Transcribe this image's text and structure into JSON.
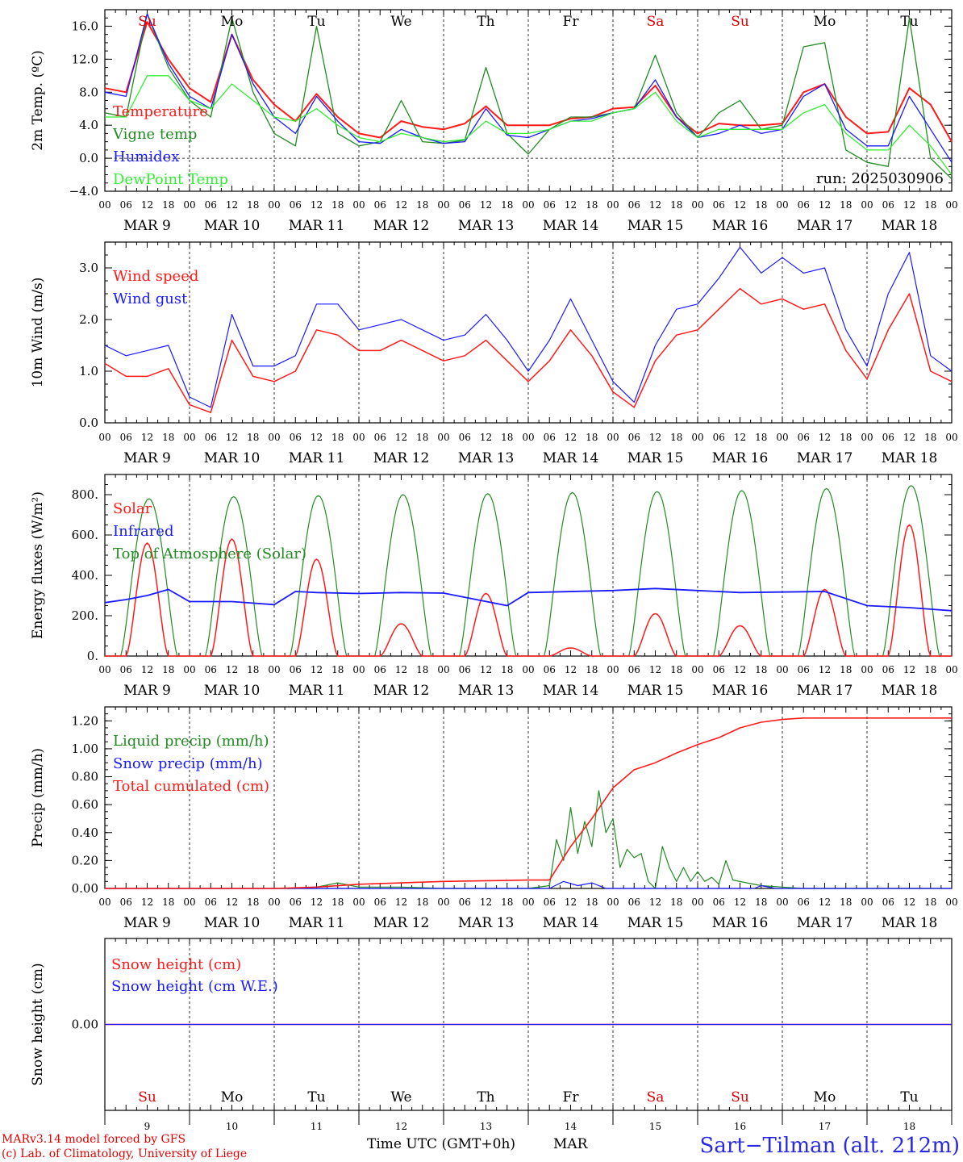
{
  "colors": {
    "red": "#ff1a1a",
    "dark_green": "#228b22",
    "blue": "#1a1aff",
    "light_green": "#33ee33",
    "black": "#000000"
  },
  "x_axis": {
    "hour_ticks": [
      "00",
      "06",
      "12",
      "18"
    ],
    "final_tick": "00",
    "dates": [
      "MAR  9",
      "MAR 10",
      "MAR 11",
      "MAR 12",
      "MAR 13",
      "MAR 14",
      "MAR 15",
      "MAR 16",
      "MAR 17",
      "MAR 18"
    ],
    "weekdays": [
      {
        "label": "Su",
        "color": "#e00000"
      },
      {
        "label": "Mo",
        "color": "#000000"
      },
      {
        "label": "Tu",
        "color": "#000000"
      },
      {
        "label": "We",
        "color": "#000000"
      },
      {
        "label": "Th",
        "color": "#000000"
      },
      {
        "label": "Fr",
        "color": "#000000"
      },
      {
        "label": "Sa",
        "color": "#e00000"
      },
      {
        "label": "Su",
        "color": "#e00000"
      },
      {
        "label": "Mo",
        "color": "#000000"
      },
      {
        "label": "Tu",
        "color": "#000000"
      }
    ],
    "day_numbers": [
      "9",
      "10",
      "11",
      "12",
      "13",
      "14",
      "15",
      "16",
      "17",
      "18"
    ]
  },
  "chart_data": [
    {
      "type": "line",
      "ylabel": "2m Temp. (ºC)",
      "ylim": [
        -4,
        18
      ],
      "yticks": [
        -4,
        0,
        4,
        8,
        12,
        16
      ],
      "ytick_labels": [
        "−4.0",
        "0.0",
        "4.0",
        "8.0",
        "12.0",
        "16.0"
      ],
      "zero_line": true,
      "annotation": "run: 2025030906",
      "x_hours": [
        0,
        6,
        12,
        18,
        24,
        30,
        36,
        42,
        48,
        54,
        60,
        66,
        72,
        78,
        84,
        90,
        96,
        102,
        108,
        114,
        120,
        126,
        132,
        138,
        144,
        150,
        156,
        162,
        168,
        174,
        180,
        186,
        192,
        198,
        204,
        210,
        216,
        222,
        228,
        234,
        240
      ],
      "series": [
        {
          "name": "Temperature",
          "color": "#ff1a1a",
          "width": 2,
          "values": [
            8.5,
            8.0,
            16.5,
            12.0,
            8.5,
            6.8,
            15.0,
            9.5,
            6.5,
            4.5,
            7.8,
            5.0,
            3.0,
            2.5,
            4.5,
            3.8,
            3.5,
            4.2,
            6.3,
            4.0,
            4.0,
            4.0,
            4.8,
            5.0,
            6.0,
            6.2,
            8.8,
            5.0,
            3.0,
            4.2,
            4.0,
            4.0,
            4.2,
            8.0,
            9.0,
            5.0,
            3.0,
            3.2,
            8.5,
            6.5,
            2.0
          ]
        },
        {
          "name": "Vigne temp",
          "color": "#228b22",
          "width": 1.3,
          "values": [
            5.5,
            5.0,
            17.5,
            11.0,
            7.0,
            5.0,
            17.0,
            8.0,
            3.0,
            1.5,
            16.0,
            3.0,
            1.5,
            2.0,
            7.0,
            2.0,
            1.8,
            2.2,
            11.0,
            3.0,
            0.5,
            3.5,
            5.0,
            5.0,
            5.5,
            6.0,
            12.5,
            5.5,
            2.5,
            5.5,
            7.0,
            3.5,
            4.0,
            13.5,
            14.0,
            1.0,
            -0.5,
            -1.0,
            17.0,
            0.0,
            -2.5
          ]
        },
        {
          "name": "Humidex",
          "color": "#1a1aff",
          "width": 1.3,
          "values": [
            8.0,
            7.5,
            17.5,
            11.5,
            7.5,
            6.0,
            15.0,
            9.0,
            5.0,
            3.0,
            7.5,
            4.5,
            2.0,
            1.8,
            3.5,
            2.5,
            1.8,
            2.0,
            6.0,
            2.8,
            2.5,
            3.5,
            4.5,
            4.8,
            5.5,
            6.0,
            9.5,
            5.0,
            2.5,
            3.0,
            4.0,
            3.0,
            3.5,
            7.5,
            9.0,
            3.5,
            1.5,
            1.5,
            7.5,
            3.5,
            -0.5
          ]
        },
        {
          "name": "DewPoint Temp",
          "color": "#33ee33",
          "width": 1.3,
          "values": [
            5.0,
            5.0,
            10.0,
            10.0,
            7.0,
            6.0,
            9.0,
            7.0,
            5.0,
            4.5,
            6.0,
            4.0,
            2.5,
            2.0,
            3.0,
            2.5,
            2.0,
            2.3,
            4.5,
            3.0,
            3.0,
            3.5,
            4.5,
            4.5,
            5.5,
            6.0,
            8.0,
            4.5,
            2.5,
            3.5,
            3.5,
            3.5,
            3.5,
            5.5,
            6.5,
            3.0,
            1.0,
            1.0,
            4.0,
            1.5,
            -2.0
          ]
        }
      ]
    },
    {
      "type": "line",
      "ylabel": "10m Wind (m/s)",
      "ylim": [
        0,
        3.5
      ],
      "yticks": [
        0,
        1,
        2,
        3
      ],
      "ytick_labels": [
        "0.0",
        "1.0",
        "2.0",
        "3.0"
      ],
      "x_hours": [
        0,
        6,
        12,
        18,
        24,
        30,
        36,
        42,
        48,
        54,
        60,
        66,
        72,
        78,
        84,
        90,
        96,
        102,
        108,
        114,
        120,
        126,
        132,
        138,
        144,
        150,
        156,
        162,
        168,
        174,
        180,
        186,
        192,
        198,
        204,
        210,
        216,
        222,
        228,
        234,
        240
      ],
      "series": [
        {
          "name": "Wind speed",
          "color": "#ff1a1a",
          "width": 1.5,
          "values": [
            1.15,
            0.9,
            0.9,
            1.05,
            0.35,
            0.2,
            1.6,
            0.9,
            0.8,
            1.0,
            1.8,
            1.7,
            1.4,
            1.4,
            1.6,
            1.4,
            1.2,
            1.3,
            1.6,
            1.2,
            0.8,
            1.2,
            1.8,
            1.3,
            0.6,
            0.3,
            1.2,
            1.7,
            1.8,
            2.2,
            2.6,
            2.3,
            2.4,
            2.2,
            2.3,
            1.4,
            0.85,
            1.8,
            2.5,
            1.0,
            0.8
          ]
        },
        {
          "name": "Wind gust",
          "color": "#1a1aff",
          "width": 1.2,
          "values": [
            1.5,
            1.3,
            1.4,
            1.5,
            0.5,
            0.3,
            2.1,
            1.1,
            1.1,
            1.3,
            2.3,
            2.3,
            1.8,
            1.9,
            2.0,
            1.8,
            1.6,
            1.7,
            2.1,
            1.6,
            1.0,
            1.6,
            2.4,
            1.6,
            0.8,
            0.4,
            1.5,
            2.2,
            2.3,
            2.8,
            3.4,
            2.9,
            3.2,
            2.9,
            3.0,
            1.8,
            1.1,
            2.5,
            3.3,
            1.3,
            1.0
          ]
        }
      ]
    },
    {
      "type": "line",
      "ylabel": "Energy fluxes (W/m²)",
      "ylim": [
        0,
        900
      ],
      "yticks": [
        0,
        200,
        400,
        600,
        800
      ],
      "ytick_labels": [
        "0.",
        "200.",
        "400.",
        "600.",
        "800."
      ],
      "toa_peaks": [
        780,
        790,
        795,
        800,
        805,
        810,
        815,
        820,
        830,
        845
      ],
      "solar_peaks": [
        560,
        580,
        480,
        160,
        310,
        40,
        210,
        150,
        330,
        650
      ],
      "infrared_points": [
        [
          0,
          265
        ],
        [
          6,
          280
        ],
        [
          12,
          300
        ],
        [
          18,
          330
        ],
        [
          24,
          270
        ],
        [
          36,
          270
        ],
        [
          48,
          255
        ],
        [
          54,
          320
        ],
        [
          60,
          315
        ],
        [
          72,
          310
        ],
        [
          84,
          315
        ],
        [
          96,
          312
        ],
        [
          114,
          250
        ],
        [
          120,
          315
        ],
        [
          144,
          325
        ],
        [
          156,
          335
        ],
        [
          168,
          325
        ],
        [
          180,
          315
        ],
        [
          204,
          320
        ],
        [
          216,
          250
        ],
        [
          228,
          240
        ],
        [
          240,
          225
        ]
      ],
      "series": [
        {
          "name": "Solar",
          "color": "#ff1a1a",
          "width": 1.5
        },
        {
          "name": "Infrared",
          "color": "#1a1aff",
          "width": 1.8
        },
        {
          "name": "Top of Atmosphere (Solar)",
          "color": "#228b22",
          "width": 1.2
        }
      ]
    },
    {
      "type": "line",
      "ylabel": "Precip (mm/h)",
      "ylim": [
        0,
        1.3
      ],
      "yticks": [
        0,
        0.2,
        0.4,
        0.6,
        0.8,
        1.0,
        1.2
      ],
      "ytick_labels": [
        "0.00",
        "0.20",
        "0.40",
        "0.60",
        "0.80",
        "1.00",
        "1.20"
      ],
      "series": [
        {
          "name": "Liquid precip (mm/h)",
          "color": "#228b22",
          "width": 1.2,
          "points": [
            [
              0,
              0
            ],
            [
              54,
              0
            ],
            [
              60,
              0.01
            ],
            [
              66,
              0.04
            ],
            [
              72,
              0.01
            ],
            [
              84,
              0.01
            ],
            [
              96,
              0
            ],
            [
              120,
              0
            ],
            [
              126,
              0.02
            ],
            [
              128,
              0.35
            ],
            [
              130,
              0.2
            ],
            [
              132,
              0.58
            ],
            [
              134,
              0.25
            ],
            [
              136,
              0.48
            ],
            [
              138,
              0.3
            ],
            [
              140,
              0.7
            ],
            [
              142,
              0.4
            ],
            [
              144,
              0.5
            ],
            [
              146,
              0.15
            ],
            [
              148,
              0.28
            ],
            [
              150,
              0.22
            ],
            [
              152,
              0.25
            ],
            [
              154,
              0.05
            ],
            [
              156,
              0
            ],
            [
              158,
              0.3
            ],
            [
              160,
              0.15
            ],
            [
              162,
              0.05
            ],
            [
              164,
              0.15
            ],
            [
              166,
              0.05
            ],
            [
              168,
              0.12
            ],
            [
              170,
              0.05
            ],
            [
              172,
              0.08
            ],
            [
              174,
              0.03
            ],
            [
              176,
              0.2
            ],
            [
              178,
              0.06
            ],
            [
              182,
              0.04
            ],
            [
              186,
              0.02
            ],
            [
              192,
              0.01
            ],
            [
              198,
              0
            ],
            [
              240,
              0
            ]
          ]
        },
        {
          "name": "Snow precip (mm/h)",
          "color": "#1a1aff",
          "width": 1.2,
          "points": [
            [
              0,
              0
            ],
            [
              126,
              0
            ],
            [
              130,
              0.05
            ],
            [
              134,
              0.02
            ],
            [
              138,
              0.04
            ],
            [
              142,
              0
            ],
            [
              184,
              0
            ],
            [
              186,
              0.02
            ],
            [
              190,
              0
            ],
            [
              240,
              0
            ]
          ]
        },
        {
          "name": "Total cumulated (cm)",
          "color": "#ff1a1a",
          "width": 1.6,
          "points": [
            [
              0,
              0
            ],
            [
              48,
              0
            ],
            [
              60,
              0.01
            ],
            [
              72,
              0.03
            ],
            [
              96,
              0.05
            ],
            [
              120,
              0.06
            ],
            [
              126,
              0.06
            ],
            [
              132,
              0.3
            ],
            [
              138,
              0.5
            ],
            [
              144,
              0.72
            ],
            [
              150,
              0.85
            ],
            [
              156,
              0.9
            ],
            [
              162,
              0.97
            ],
            [
              168,
              1.03
            ],
            [
              174,
              1.08
            ],
            [
              180,
              1.15
            ],
            [
              186,
              1.19
            ],
            [
              192,
              1.21
            ],
            [
              198,
              1.22
            ],
            [
              240,
              1.22
            ]
          ]
        }
      ]
    },
    {
      "type": "line",
      "ylabel": "Snow height (cm)",
      "ylim": [
        -1,
        1
      ],
      "yticks": [
        0
      ],
      "ytick_labels": [
        "0.00"
      ],
      "series": [
        {
          "name": "Snow height (cm)",
          "color": "#ff1a1a",
          "width": 1.5,
          "points": [
            [
              0,
              0
            ],
            [
              240,
              0
            ]
          ]
        },
        {
          "name": "Snow height (cm W.E.)",
          "color": "#1a1aff",
          "width": 1.2,
          "points": [
            [
              0,
              0
            ],
            [
              240,
              0
            ]
          ]
        }
      ]
    }
  ],
  "footer": {
    "model_line": "MARv3.14 model forced by GFS",
    "credit_line": "(c) Lab. of Climatology, University of Liege",
    "xlabel": "Time UTC (GMT+0h)",
    "month": "MAR",
    "station": "Sart−Tilman (alt. 212m)"
  }
}
